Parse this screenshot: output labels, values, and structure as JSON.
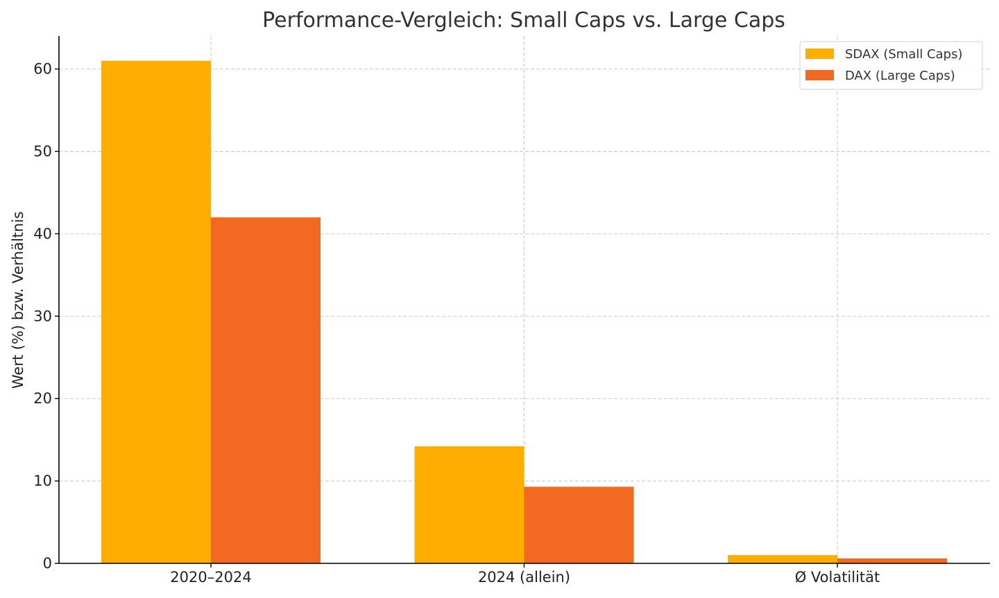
{
  "chart_data": {
    "type": "bar",
    "title": "Performance-Vergleich: Small Caps vs. Large Caps",
    "xlabel": "",
    "ylabel": "Wert (%) bzw. Verhältnis",
    "categories": [
      "2020–2024",
      "2024 (allein)",
      "Ø Volatilität"
    ],
    "series": [
      {
        "name": "SDAX (Small Caps)",
        "values": [
          61.0,
          14.2,
          1.0
        ],
        "color": "#FFAE00"
      },
      {
        "name": "DAX (Large Caps)",
        "values": [
          42.0,
          9.3,
          0.6
        ],
        "color": "#F26A21"
      }
    ],
    "ylim": [
      0,
      64
    ],
    "yticks": [
      0,
      10,
      20,
      30,
      40,
      50,
      60
    ],
    "grid": true,
    "legend_position": "top-right"
  }
}
